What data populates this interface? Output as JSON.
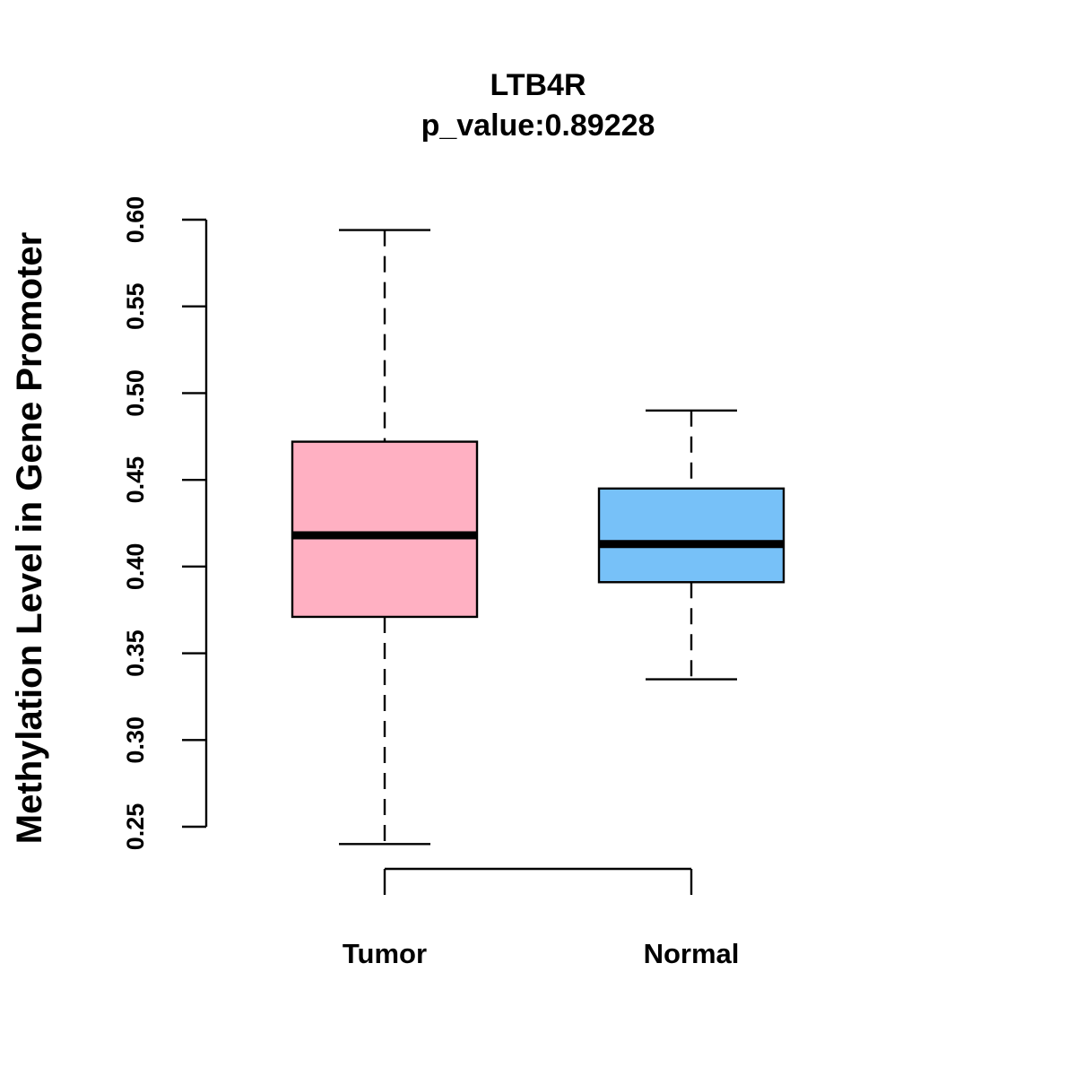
{
  "chart_data": {
    "type": "boxplot",
    "title": "LTB4R",
    "subtitle": "p_value:0.89228",
    "xlabel": "",
    "ylabel": "Methylation Level in Gene Promoter",
    "ylim": [
      0.25,
      0.6
    ],
    "yticks": [
      {
        "value": 0.25,
        "label": "0.25"
      },
      {
        "value": 0.3,
        "label": "0.30"
      },
      {
        "value": 0.35,
        "label": "0.35"
      },
      {
        "value": 0.4,
        "label": "0.40"
      },
      {
        "value": 0.45,
        "label": "0.45"
      },
      {
        "value": 0.5,
        "label": "0.50"
      },
      {
        "value": 0.55,
        "label": "0.55"
      },
      {
        "value": 0.6,
        "label": "0.60"
      }
    ],
    "categories": [
      "Tumor",
      "Normal"
    ],
    "series": [
      {
        "name": "Tumor",
        "whisker_low": 0.24,
        "q1": 0.371,
        "median": 0.418,
        "q3": 0.472,
        "whisker_high": 0.594,
        "color": "#ffb0c2"
      },
      {
        "name": "Normal",
        "whisker_low": 0.335,
        "q1": 0.391,
        "median": 0.413,
        "q3": 0.445,
        "whisker_high": 0.49,
        "color": "#77c1f8"
      }
    ],
    "grid": false,
    "legend": "none"
  }
}
